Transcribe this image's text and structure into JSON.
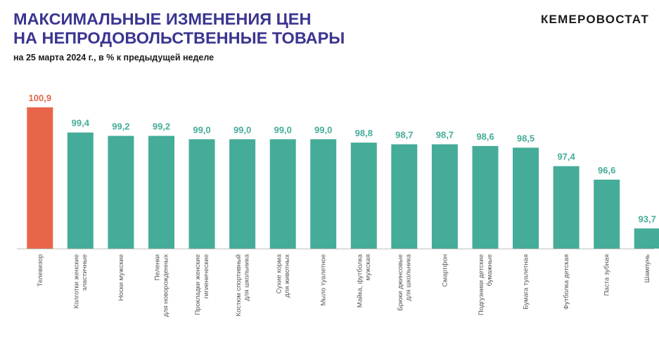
{
  "header": {
    "title_line1": "МАКСИМАЛЬНЫЕ ИЗМЕНЕНИЯ ЦЕН",
    "title_line2": "НА НЕПРОДОВОЛЬСТВЕННЫЕ ТОВАРЫ",
    "subtitle": "на 25 марта 2024 г., в % к предыдущей неделе",
    "logo": "КЕМЕРОВОСТАТ"
  },
  "colors": {
    "title": "#3b3590",
    "highlight_bar": "#e8654a",
    "bar": "#45ac99",
    "highlight_label": "#e8654a",
    "label": "#45ac99"
  },
  "chart_data": {
    "type": "bar",
    "title": "МАКСИМАЛЬНЫЕ ИЗМЕНЕНИЯ ЦЕН НА НЕПРОДОВОЛЬСТВЕННЫЕ ТОВАРЫ",
    "subtitle": "на 25 марта 2024 г., в % к предыдущей неделе",
    "categories": [
      [
        "Телевизор"
      ],
      [
        "Колготки женские",
        "эластичные"
      ],
      [
        "Носки мужские"
      ],
      [
        "Пеленки",
        "для новорожденных"
      ],
      [
        "Прокладки женские",
        "гигиенические"
      ],
      [
        "Костюм спортивный",
        "для школьника"
      ],
      [
        "Сухие корма",
        "для животных"
      ],
      [
        "Мыло туалетное"
      ],
      [
        "Майка, футболка",
        "мужская"
      ],
      [
        "Брюки джинсовые",
        "для школьника"
      ],
      [
        "Смартфон"
      ],
      [
        "Подгузники детские",
        "бумажные"
      ],
      [
        "Бумага туалетная"
      ],
      [
        "Футболка детская"
      ],
      [
        "Паста зубная"
      ],
      [
        "Шампунь"
      ]
    ],
    "values": [
      100.9,
      99.4,
      99.2,
      99.2,
      99.0,
      99.0,
      99.0,
      99.0,
      98.8,
      98.7,
      98.7,
      98.6,
      98.5,
      97.4,
      96.6,
      93.7
    ],
    "value_labels": [
      "100,9",
      "99,4",
      "99,2",
      "99,2",
      "99,0",
      "99,0",
      "99,0",
      "99,0",
      "98,8",
      "98,7",
      "98,7",
      "98,6",
      "98,5",
      "97,4",
      "96,6",
      "93,7"
    ],
    "highlight_index": 0,
    "ylim": [
      92.5,
      101.1
    ],
    "grid": false,
    "legend": "none",
    "xlabel": "",
    "ylabel": ""
  }
}
